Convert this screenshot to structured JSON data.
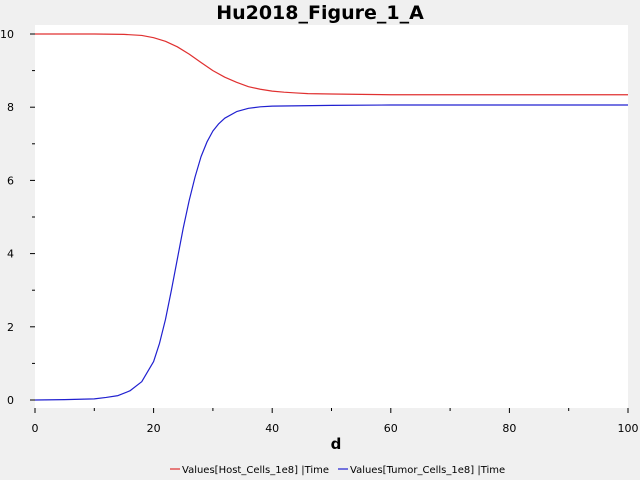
{
  "chart_data": {
    "type": "line",
    "title": "Hu2018_Figure_1_A",
    "xlabel": "d",
    "ylabel": "",
    "xlim": [
      0,
      100
    ],
    "ylim": [
      0,
      10
    ],
    "xticks": [
      0,
      20,
      40,
      60,
      80,
      100
    ],
    "yticks": [
      0,
      2,
      4,
      6,
      8,
      10
    ],
    "grid": false,
    "legend_position": "bottom",
    "series": [
      {
        "name": "Values[Host_Cells_1e8] |Time",
        "color": "#e03030",
        "x": [
          0,
          5,
          10,
          15,
          18,
          20,
          22,
          24,
          26,
          28,
          30,
          32,
          34,
          36,
          38,
          40,
          42,
          44,
          46,
          50,
          55,
          60,
          70,
          80,
          90,
          100
        ],
        "y": [
          10.0,
          10.0,
          10.0,
          9.99,
          9.96,
          9.9,
          9.8,
          9.65,
          9.45,
          9.22,
          9.0,
          8.82,
          8.68,
          8.56,
          8.49,
          8.44,
          8.41,
          8.39,
          8.37,
          8.36,
          8.35,
          8.34,
          8.34,
          8.34,
          8.34,
          8.34
        ]
      },
      {
        "name": "Values[Tumor_Cells_1e8] |Time",
        "color": "#2020d0",
        "x": [
          0,
          5,
          10,
          12,
          14,
          16,
          18,
          20,
          21,
          22,
          23,
          24,
          25,
          26,
          27,
          28,
          29,
          30,
          31,
          32,
          34,
          36,
          38,
          40,
          45,
          50,
          60,
          70,
          80,
          90,
          100
        ],
        "y": [
          0.0,
          0.01,
          0.03,
          0.07,
          0.12,
          0.25,
          0.5,
          1.05,
          1.55,
          2.2,
          3.0,
          3.85,
          4.7,
          5.45,
          6.1,
          6.65,
          7.05,
          7.35,
          7.55,
          7.7,
          7.88,
          7.97,
          8.01,
          8.03,
          8.04,
          8.05,
          8.06,
          8.06,
          8.06,
          8.06,
          8.06
        ]
      }
    ]
  }
}
